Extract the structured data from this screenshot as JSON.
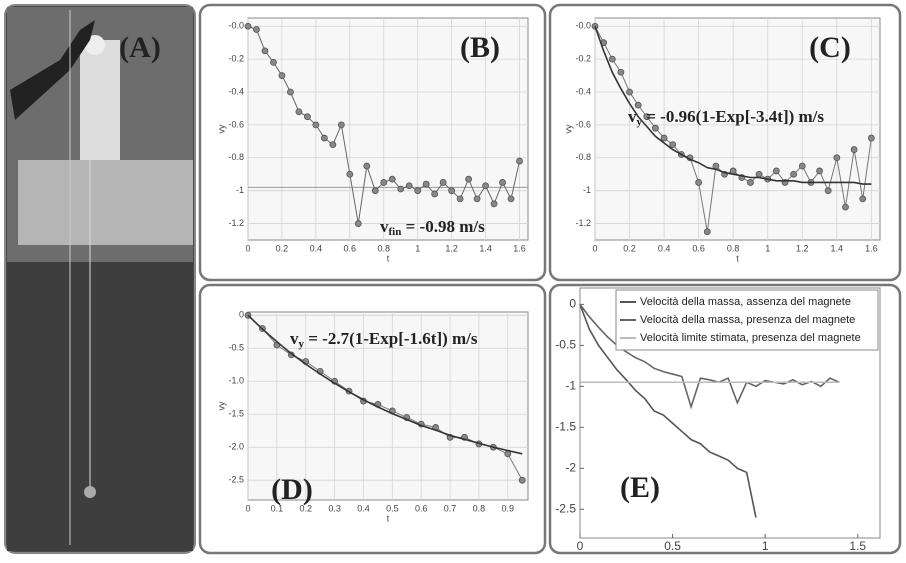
{
  "photo": {
    "label": "(A)"
  },
  "chart_data": [
    {
      "type": "line",
      "panel_label": "(B)",
      "xlabel": "t",
      "ylabel": "vy",
      "annotation": {
        "main": "v",
        "sub": "fin",
        "rest": " = -0.98 m/s"
      },
      "x": [
        0,
        0.05,
        0.1,
        0.15,
        0.2,
        0.25,
        0.3,
        0.35,
        0.4,
        0.45,
        0.5,
        0.55,
        0.6,
        0.65,
        0.7,
        0.75,
        0.8,
        0.85,
        0.9,
        0.95,
        1.0,
        1.05,
        1.1,
        1.15,
        1.2,
        1.25,
        1.3,
        1.35,
        1.4,
        1.45,
        1.5,
        1.55,
        1.6
      ],
      "series": [
        {
          "color": "#666666",
          "markers": true,
          "values": [
            0,
            -0.02,
            -0.15,
            -0.22,
            -0.3,
            -0.4,
            -0.52,
            -0.55,
            -0.6,
            -0.68,
            -0.72,
            -0.6,
            -0.9,
            -1.2,
            -0.85,
            -1.0,
            -0.95,
            -0.93,
            -0.99,
            -0.97,
            -1.0,
            -0.96,
            -1.02,
            -0.95,
            -1.0,
            -1.05,
            -0.93,
            -1.05,
            -0.97,
            -1.08,
            -0.95,
            -1.05,
            -0.82
          ]
        }
      ],
      "reference": -0.98,
      "xlim": [
        0,
        1.65
      ],
      "xticks": [
        0,
        0.2,
        0.4,
        0.6,
        0.8,
        1,
        1.2,
        1.4,
        1.6
      ],
      "ylim": [
        -1.3,
        0.05
      ],
      "yticks": [
        {
          "value": 0,
          "label": "-0.0"
        },
        -0.2,
        -0.4,
        -0.6,
        -0.8,
        -1,
        -1.2
      ],
      "grid": true
    },
    {
      "type": "line",
      "panel_label": "(C)",
      "xlabel": "t",
      "ylabel": "vy",
      "annotation": {
        "main": "v",
        "sub": "y",
        "rest": " = -0.96(1-Exp[-3.4t]) m/s"
      },
      "x": [
        0,
        0.05,
        0.1,
        0.15,
        0.2,
        0.25,
        0.3,
        0.35,
        0.4,
        0.45,
        0.5,
        0.55,
        0.6,
        0.65,
        0.7,
        0.75,
        0.8,
        0.85,
        0.9,
        0.95,
        1.0,
        1.05,
        1.1,
        1.15,
        1.2,
        1.25,
        1.3,
        1.35,
        1.4,
        1.45,
        1.5,
        1.55,
        1.6
      ],
      "series": [
        {
          "color": "#777777",
          "markers": true,
          "values": [
            0,
            -0.1,
            -0.2,
            -0.28,
            -0.4,
            -0.48,
            -0.55,
            -0.62,
            -0.68,
            -0.72,
            -0.78,
            -0.8,
            -0.95,
            -1.25,
            -0.85,
            -0.9,
            -0.88,
            -0.92,
            -0.95,
            -0.9,
            -0.93,
            -0.88,
            -0.95,
            -0.9,
            -0.85,
            -0.95,
            -0.88,
            -1.0,
            -0.8,
            -1.1,
            -0.75,
            -1.05,
            -0.68
          ]
        },
        {
          "color": "#333333",
          "markers": false,
          "values": [
            0,
            -0.15,
            -0.28,
            -0.38,
            -0.47,
            -0.55,
            -0.61,
            -0.67,
            -0.71,
            -0.75,
            -0.78,
            -0.81,
            -0.83,
            -0.86,
            -0.87,
            -0.89,
            -0.9,
            -0.91,
            -0.92,
            -0.92,
            -0.93,
            -0.94,
            -0.94,
            -0.94,
            -0.95,
            -0.95,
            -0.95,
            -0.95,
            -0.95,
            -0.95,
            -0.95,
            -0.96,
            -0.96
          ]
        }
      ],
      "xlim": [
        0,
        1.65
      ],
      "xticks": [
        0,
        0.2,
        0.4,
        0.6,
        0.8,
        1,
        1.2,
        1.4,
        1.6
      ],
      "ylim": [
        -1.3,
        0.05
      ],
      "yticks": [
        {
          "value": 0,
          "label": "-0.0"
        },
        -0.2,
        -0.4,
        -0.6,
        -0.8,
        -1,
        -1.2
      ],
      "grid": true
    },
    {
      "type": "line",
      "panel_label": "(D)",
      "xlabel": "t",
      "ylabel": "vy",
      "annotation": {
        "main": "v",
        "sub": "y",
        "rest": " = -2.7(1-Exp[-1.6t]) m/s"
      },
      "x": [
        0,
        0.05,
        0.1,
        0.15,
        0.2,
        0.25,
        0.3,
        0.35,
        0.4,
        0.45,
        0.5,
        0.55,
        0.6,
        0.65,
        0.7,
        0.75,
        0.8,
        0.85,
        0.9,
        0.95
      ],
      "series": [
        {
          "color": "#777777",
          "markers": true,
          "values": [
            0,
            -0.2,
            -0.45,
            -0.6,
            -0.7,
            -0.85,
            -1.0,
            -1.15,
            -1.3,
            -1.35,
            -1.45,
            -1.55,
            -1.65,
            -1.7,
            -1.85,
            -1.85,
            -1.95,
            -2.0,
            -2.1,
            -2.5
          ]
        },
        {
          "color": "#333333",
          "markers": false,
          "values": [
            0,
            -0.21,
            -0.4,
            -0.58,
            -0.74,
            -0.89,
            -1.03,
            -1.16,
            -1.28,
            -1.39,
            -1.49,
            -1.58,
            -1.67,
            -1.74,
            -1.82,
            -1.88,
            -1.94,
            -2.0,
            -2.05,
            -2.1
          ]
        }
      ],
      "xlim": [
        0,
        0.97
      ],
      "xticks": [
        0,
        0.1,
        0.2,
        0.3,
        0.4,
        0.5,
        0.6,
        0.7,
        0.8,
        0.9
      ],
      "ylim": [
        -2.8,
        0.05
      ],
      "yticks": [
        0,
        -0.5,
        {
          "value": -1,
          "label": "-1.0"
        },
        -1.5,
        {
          "value": -2,
          "label": "-2.0"
        },
        -2.5
      ],
      "grid": true
    },
    {
      "type": "line",
      "panel_label": "(E)",
      "legend": "upper right",
      "x": [
        0,
        0.05,
        0.1,
        0.15,
        0.2,
        0.25,
        0.3,
        0.35,
        0.4,
        0.45,
        0.5,
        0.55,
        0.6,
        0.65,
        0.7,
        0.75,
        0.8,
        0.85,
        0.9,
        0.95,
        1.0,
        1.05,
        1.1,
        1.15,
        1.2,
        1.25,
        1.3,
        1.35,
        1.4
      ],
      "series": [
        {
          "name": "Velocità della massa, assenza del magnete",
          "color": "#555555",
          "markers": false,
          "values": [
            0,
            -0.3,
            -0.5,
            -0.65,
            -0.8,
            -0.92,
            -1.05,
            -1.15,
            -1.3,
            -1.35,
            -1.45,
            -1.55,
            -1.65,
            -1.7,
            -1.8,
            -1.85,
            -1.9,
            -2.0,
            -2.05,
            -2.6,
            null,
            null,
            null,
            null,
            null,
            null,
            null,
            null,
            null
          ]
        },
        {
          "name": "Velocità della massa, presenza del magnete",
          "color": "#666666",
          "markers": false,
          "values": [
            0,
            -0.15,
            -0.28,
            -0.4,
            -0.5,
            -0.58,
            -0.65,
            -0.7,
            -0.78,
            -0.82,
            -0.85,
            -0.88,
            -1.25,
            -0.9,
            -0.92,
            -0.95,
            -0.9,
            -1.2,
            -0.95,
            -1.0,
            -0.93,
            -0.95,
            -0.97,
            -0.92,
            -0.98,
            -0.94,
            -1.0,
            -0.9,
            -0.95
          ]
        },
        {
          "name": "Velocità limite stimata, presenza del magnete",
          "color": "#bbbbbb",
          "markers": false,
          "values": [
            -0.95,
            -0.95,
            -0.95,
            -0.95,
            -0.95,
            -0.95,
            -0.95,
            -0.95,
            -0.95,
            -0.95,
            -0.95,
            -0.95,
            -0.95,
            -0.95,
            -0.95,
            -0.95,
            -0.95,
            -0.95,
            -0.95,
            -0.95,
            -0.95,
            -0.95,
            -0.95,
            -0.95,
            -0.95,
            -0.95,
            -0.95,
            -0.95,
            -0.95
          ]
        }
      ],
      "xlim": [
        0,
        1.62
      ],
      "xticks": [
        0,
        0.5,
        1,
        1.5
      ],
      "ylim": [
        -2.85,
        0.2
      ],
      "yticks": [
        0,
        -0.5,
        -1,
        -1.5,
        -2,
        -2.5
      ],
      "grid": false
    }
  ]
}
